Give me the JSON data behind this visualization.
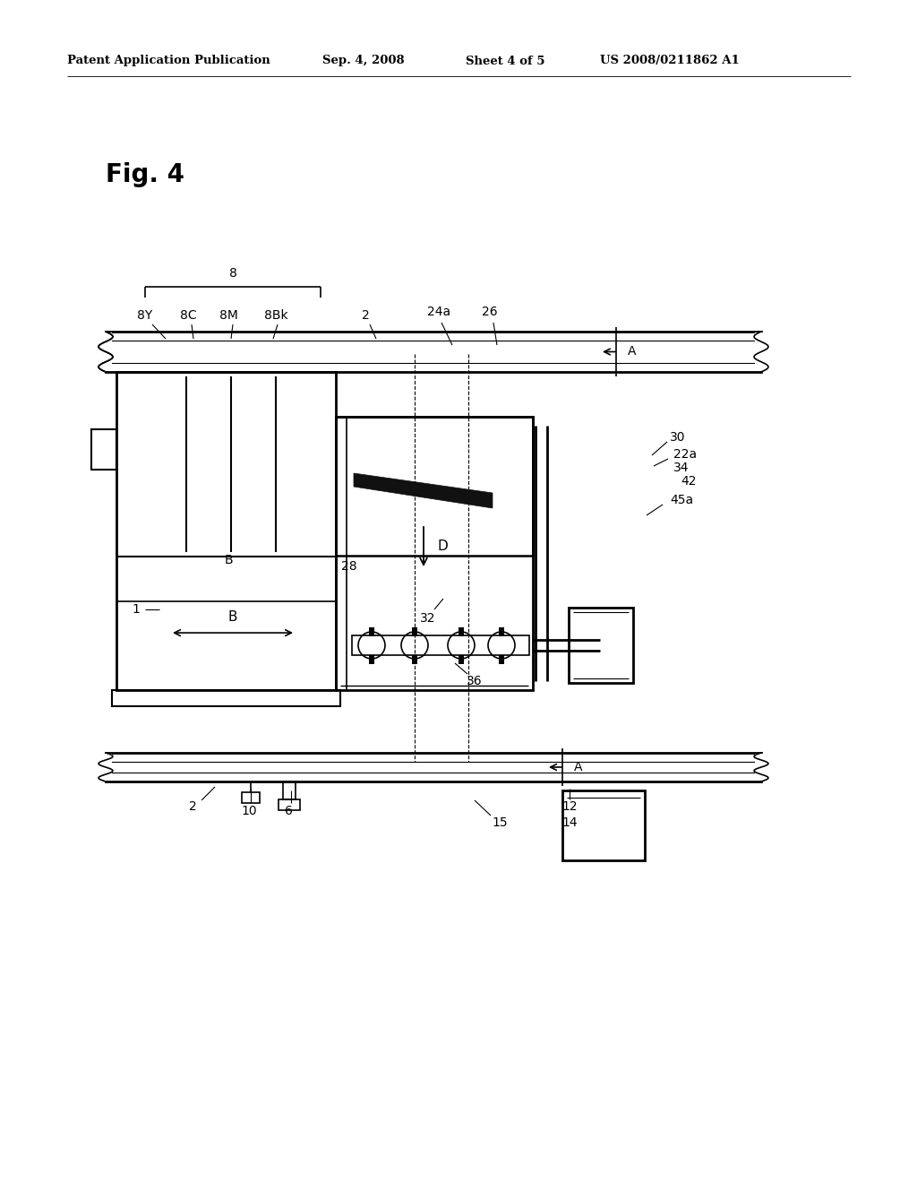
{
  "bg_color": "#ffffff",
  "line_color": "#000000",
  "header_text": "Patent Application Publication",
  "header_date": "Sep. 4, 2008",
  "header_sheet": "Sheet 4 of 5",
  "header_patent": "US 2008/0211862 A1",
  "fig_label": "Fig. 4"
}
